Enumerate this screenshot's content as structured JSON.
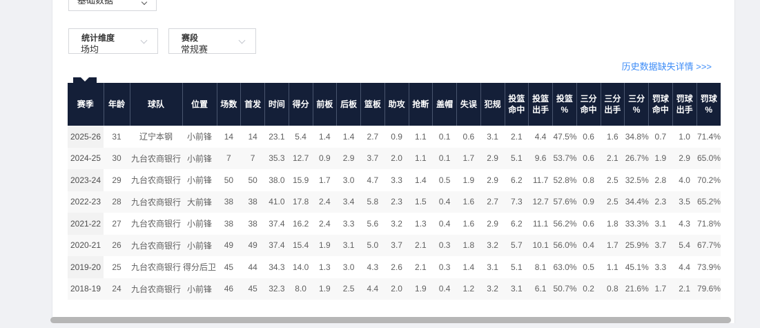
{
  "filters": {
    "data_type": {
      "value": "基础数据"
    },
    "dimension": {
      "label": "统计维度",
      "value": "场均"
    },
    "stage": {
      "label": "赛段",
      "value": "常规赛"
    }
  },
  "link": {
    "history_missing": "历史数据缺失详情 >>>"
  },
  "colors": {
    "header_bg": "#141f38",
    "link_blue": "#3d8cf7",
    "row_alt": "#f8f8f8",
    "season_col_bg": "#f2f2f2"
  },
  "table": {
    "columns": [
      "赛季",
      "年龄",
      "球队",
      "位置",
      "场数",
      "首发",
      "时间",
      "得分",
      "前板",
      "后板",
      "篮板",
      "助攻",
      "抢断",
      "盖帽",
      "失误",
      "犯规",
      "投篮\n命中",
      "投篮\n出手",
      "投篮\n%",
      "三分\n命中",
      "三分\n出手",
      "三分\n%",
      "罚球\n命中",
      "罚球\n出手",
      "罚球\n%"
    ],
    "rows": [
      [
        "2025-26",
        "31",
        "辽宁本钢",
        "小前锋",
        "14",
        "14",
        "23.1",
        "5.4",
        "1.4",
        "1.4",
        "2.7",
        "0.9",
        "1.1",
        "0.1",
        "0.6",
        "3.1",
        "2.1",
        "4.4",
        "47.5%",
        "0.6",
        "1.6",
        "34.8%",
        "0.7",
        "1.0",
        "71.4%"
      ],
      [
        "2024-25",
        "30",
        "九台农商银行",
        "小前锋",
        "7",
        "7",
        "35.3",
        "12.7",
        "0.9",
        "2.9",
        "3.7",
        "2.0",
        "1.1",
        "0.1",
        "1.7",
        "2.9",
        "5.1",
        "9.6",
        "53.7%",
        "0.6",
        "2.1",
        "26.7%",
        "1.9",
        "2.9",
        "65.0%"
      ],
      [
        "2023-24",
        "29",
        "九台农商银行",
        "小前锋",
        "50",
        "50",
        "38.0",
        "15.9",
        "1.7",
        "3.0",
        "4.7",
        "3.3",
        "1.4",
        "0.5",
        "1.9",
        "2.9",
        "6.2",
        "11.7",
        "52.8%",
        "0.8",
        "2.5",
        "32.5%",
        "2.8",
        "4.0",
        "70.2%"
      ],
      [
        "2022-23",
        "28",
        "九台农商银行",
        "大前锋",
        "38",
        "38",
        "41.0",
        "17.8",
        "2.4",
        "3.4",
        "5.8",
        "2.3",
        "1.5",
        "0.4",
        "1.6",
        "2.7",
        "7.3",
        "12.7",
        "57.6%",
        "0.9",
        "2.5",
        "34.4%",
        "2.3",
        "3.5",
        "65.2%"
      ],
      [
        "2021-22",
        "27",
        "九台农商银行",
        "小前锋",
        "38",
        "38",
        "37.4",
        "16.2",
        "2.4",
        "3.3",
        "5.6",
        "3.2",
        "1.3",
        "0.4",
        "1.6",
        "2.9",
        "6.2",
        "11.1",
        "56.2%",
        "0.6",
        "1.8",
        "33.3%",
        "3.1",
        "4.3",
        "71.8%"
      ],
      [
        "2020-21",
        "26",
        "九台农商银行",
        "小前锋",
        "49",
        "49",
        "37.4",
        "15.4",
        "1.9",
        "3.1",
        "5.0",
        "3.7",
        "2.1",
        "0.3",
        "1.8",
        "3.2",
        "5.7",
        "10.1",
        "56.0%",
        "0.4",
        "1.7",
        "25.9%",
        "3.7",
        "5.4",
        "67.7%"
      ],
      [
        "2019-20",
        "25",
        "九台农商银行",
        "得分后卫",
        "45",
        "44",
        "34.3",
        "14.0",
        "1.3",
        "3.0",
        "4.3",
        "2.6",
        "2.1",
        "0.3",
        "1.4",
        "3.1",
        "5.1",
        "8.1",
        "63.0%",
        "0.5",
        "1.1",
        "45.1%",
        "3.3",
        "4.4",
        "73.9%"
      ],
      [
        "2018-19",
        "24",
        "九台农商银行",
        "小前锋",
        "46",
        "45",
        "32.3",
        "8.0",
        "1.9",
        "2.5",
        "4.4",
        "2.0",
        "1.9",
        "0.4",
        "1.2",
        "3.2",
        "3.1",
        "6.1",
        "50.7%",
        "0.2",
        "0.8",
        "21.6%",
        "1.7",
        "2.1",
        "79.6%"
      ]
    ]
  }
}
